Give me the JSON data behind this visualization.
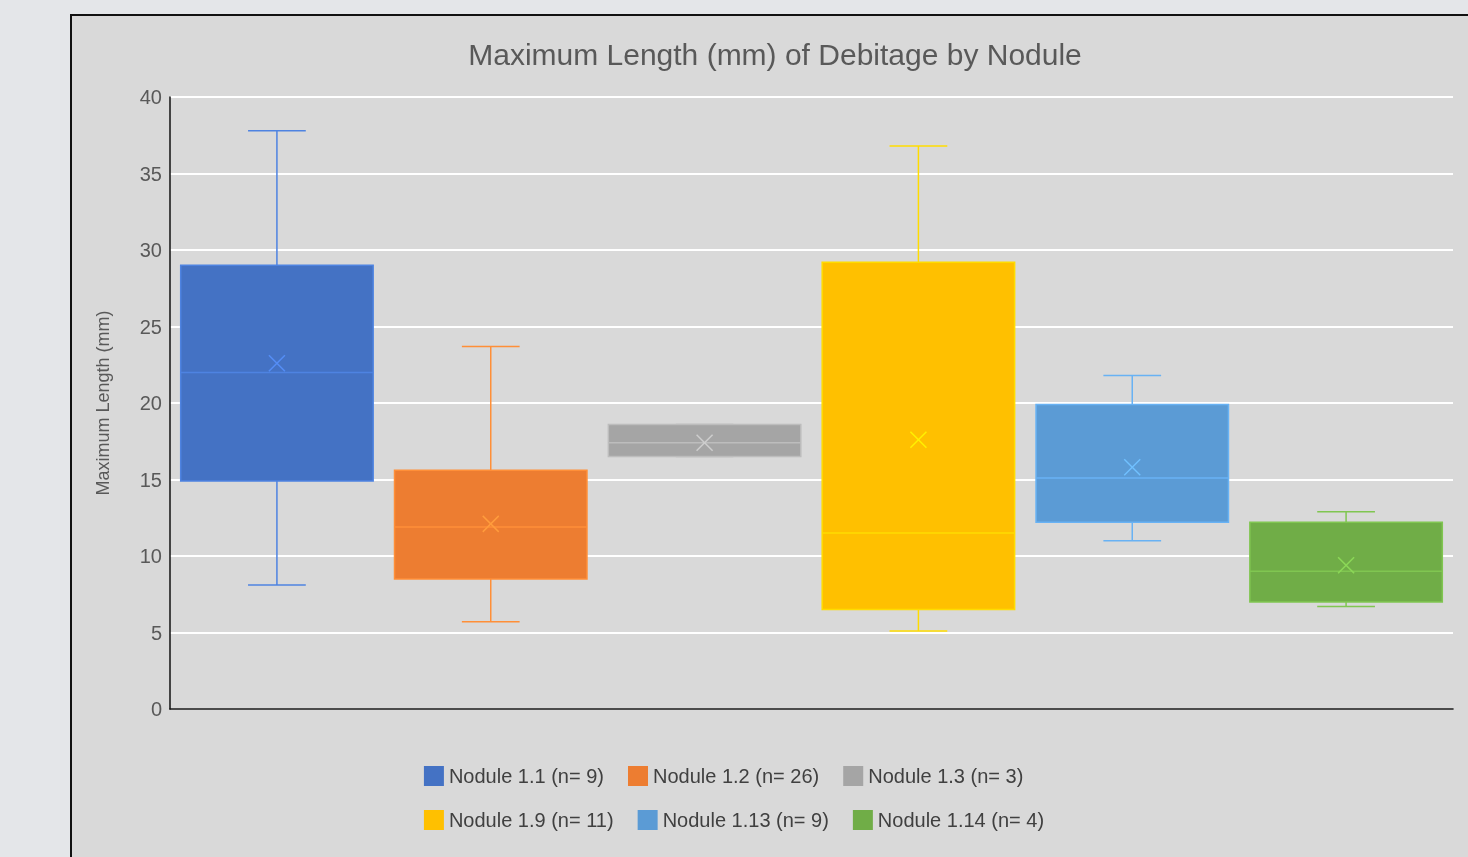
{
  "chart_data": {
    "type": "box",
    "title": "Maximum Length (mm) of Debitage by Nodule",
    "ylabel": "Maximum Length (mm)",
    "categories": [
      null
    ],
    "series": [
      {
        "name": "Nodule 1.1 (n= 9)",
        "color": "#4472c4",
        "boxes": [
          {
            "low": 8.1,
            "q1": 14.9,
            "median": 22.0,
            "q3": 29.0,
            "high": 37.8,
            "mean": 22.6
          }
        ]
      },
      {
        "name": "Nodule 1.2 (n= 26)",
        "color": "#ed7d31",
        "boxes": [
          {
            "low": 5.7,
            "q1": 8.5,
            "median": 11.9,
            "q3": 15.6,
            "high": 23.7,
            "mean": 12.1
          }
        ]
      },
      {
        "name": "Nodule 1.3 (n= 3)",
        "color": "#a5a5a5",
        "boxes": [
          {
            "low": 16.5,
            "q1": 16.5,
            "median": 17.4,
            "q3": 18.6,
            "high": 18.6,
            "mean": 17.4
          }
        ]
      },
      {
        "name": "Nodule 1.9 (n= 11)",
        "color": "#ffc000",
        "boxes": [
          {
            "low": 5.1,
            "q1": 6.5,
            "median": 11.5,
            "q3": 29.2,
            "high": 36.8,
            "mean": 17.6
          }
        ]
      },
      {
        "name": "Nodule 1.13 (n= 9)",
        "color": "#5b9bd5",
        "boxes": [
          {
            "low": 11.0,
            "q1": 12.2,
            "median": 15.1,
            "q3": 19.9,
            "high": 21.8,
            "mean": 15.8
          }
        ]
      },
      {
        "name": "Nodule 1.14 (n= 4)",
        "color": "#70ad47",
        "boxes": [
          {
            "low": 6.7,
            "q1": 7.0,
            "median": 9.0,
            "q3": 12.2,
            "high": 12.9,
            "mean": 9.4
          }
        ]
      }
    ],
    "ylim": [
      0,
      40
    ],
    "yticks": [
      0,
      5,
      10,
      15,
      20,
      25,
      30,
      35,
      40
    ],
    "grid": "y",
    "legend": "bottom",
    "marker": "cross",
    "tick_labels": "y"
  }
}
